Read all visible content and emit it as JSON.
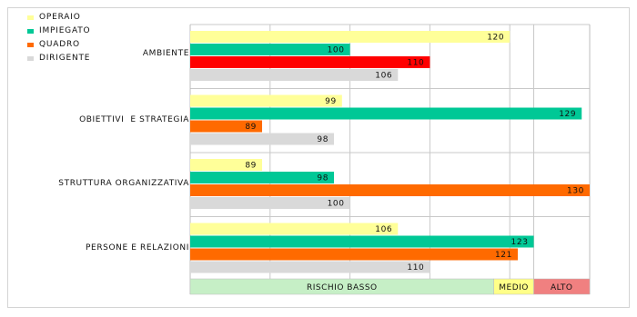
{
  "chart_data": {
    "type": "bar",
    "orientation": "horizontal",
    "categories": [
      "AMBIENTE",
      "OBIETTIVI  E STRATEGIA",
      "STRUTTURA ORGANIZZATIVA",
      "PERSONE E RELAZIONI"
    ],
    "series": [
      {
        "name": "OPERAIO",
        "color": "#ffff99",
        "values": [
          120,
          99,
          89,
          106
        ]
      },
      {
        "name": "IMPIEGATO",
        "color": "#00c896",
        "values": [
          100,
          129,
          98,
          123
        ]
      },
      {
        "name": "QUADRO",
        "color": "#ff6a00",
        "values": [
          110,
          89,
          130,
          121
        ]
      },
      {
        "name": "DIRIGENTE",
        "color": "#d9d9d9",
        "values": [
          106,
          98,
          100,
          110
        ]
      }
    ],
    "highlight": {
      "category_index": 0,
      "series_index": 2,
      "color": "#ff0000"
    },
    "xlim": [
      80,
      130
    ],
    "legend_position": "top-left",
    "risk_bands": [
      {
        "label": "RISCHIO      BASSO",
        "from": 80,
        "to": 118,
        "color": "#c6efc6"
      },
      {
        "label": "MEDIO",
        "from": 118,
        "to": 123,
        "color": "#ffff88"
      },
      {
        "label": "ALTO",
        "from": 123,
        "to": 130,
        "color": "#f08080"
      }
    ],
    "gridlines": [
      90,
      100,
      110,
      120,
      123
    ]
  }
}
